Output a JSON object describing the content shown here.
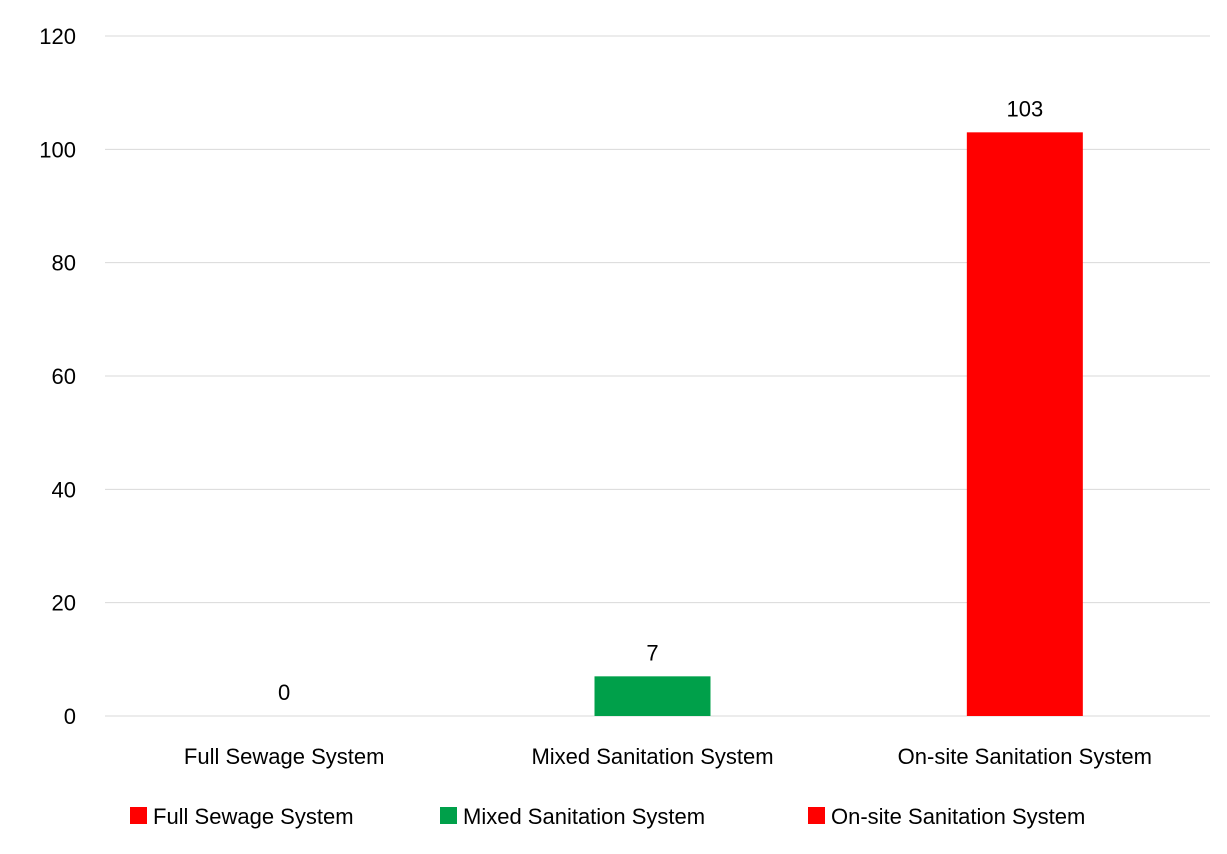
{
  "chart_data": {
    "type": "bar",
    "categories": [
      "Full Sewage System",
      "Mixed Sanitation System",
      "On-site Sanitation System"
    ],
    "values": [
      0,
      7,
      103
    ],
    "data_labels": [
      "0",
      "7",
      "103"
    ],
    "colors": [
      "#ff0000",
      "#00a04a",
      "#ff0000"
    ],
    "ylim": [
      0,
      120
    ],
    "yticks": [
      0,
      20,
      40,
      60,
      80,
      100,
      120
    ],
    "grid": true,
    "legend": {
      "placement": "bottom",
      "entries": [
        {
          "label": "Full Sewage System",
          "color": "#ff0000"
        },
        {
          "label": "Mixed Sanitation System",
          "color": "#00a04a"
        },
        {
          "label": "On-site Sanitation System",
          "color": "#ff0000"
        }
      ]
    },
    "title": "",
    "xlabel": "",
    "ylabel": ""
  }
}
